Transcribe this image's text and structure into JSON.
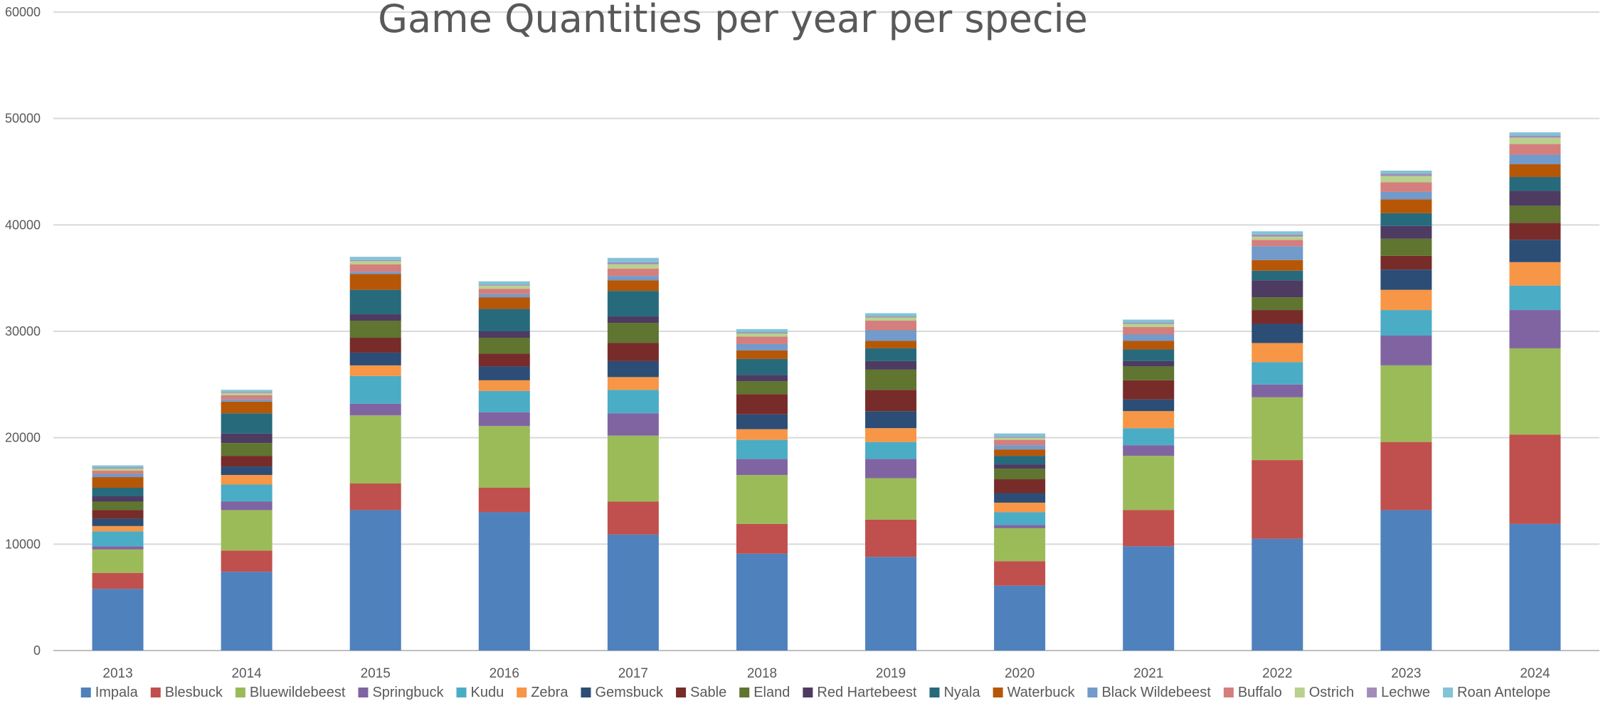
{
  "chart_data": {
    "type": "bar",
    "stacked": true,
    "title": "Game Quantities per year per specie",
    "xlabel": "",
    "ylabel": "",
    "ylim": [
      0,
      60000
    ],
    "yticks": [
      0,
      10000,
      20000,
      30000,
      40000,
      50000,
      60000
    ],
    "ytick_labels": [
      "0",
      "10000",
      "20000",
      "30000",
      "40000",
      "50000",
      "60000"
    ],
    "grid": true,
    "legend_position": "bottom",
    "categories": [
      "2013",
      "2014",
      "2015",
      "2016",
      "2017",
      "2018",
      "2019",
      "2020",
      "2021",
      "2022",
      "2023",
      "2024"
    ],
    "series": [
      {
        "name": "Impala",
        "color": "#4F81BD",
        "values": [
          5800,
          7400,
          13200,
          13000,
          10900,
          9100,
          8800,
          6100,
          9800,
          10500,
          13200,
          11900
        ]
      },
      {
        "name": "Blesbuck",
        "color": "#C0504D",
        "values": [
          1500,
          2000,
          2500,
          2300,
          3100,
          2800,
          3500,
          2300,
          3400,
          7400,
          6400,
          8400
        ]
      },
      {
        "name": "Bluewildebeest",
        "color": "#9BBB59",
        "values": [
          2200,
          3800,
          6400,
          5800,
          6200,
          4600,
          3900,
          3100,
          5100,
          5900,
          7200,
          8100
        ]
      },
      {
        "name": "Springbuck",
        "color": "#8064A2",
        "values": [
          300,
          800,
          1100,
          1300,
          2100,
          1500,
          1800,
          300,
          1000,
          1200,
          2800,
          3600
        ]
      },
      {
        "name": "Kudu",
        "color": "#4BACC6",
        "values": [
          1400,
          1600,
          2600,
          2000,
          2200,
          1800,
          1600,
          1200,
          1600,
          2100,
          2400,
          2300
        ]
      },
      {
        "name": "Zebra",
        "color": "#F79646",
        "values": [
          500,
          900,
          1000,
          1000,
          1200,
          1000,
          1300,
          900,
          1600,
          1800,
          1900,
          2200
        ]
      },
      {
        "name": "Gemsbuck",
        "color": "#2C4D75",
        "values": [
          700,
          800,
          1200,
          1300,
          1500,
          1400,
          1600,
          900,
          1100,
          1800,
          1900,
          2100
        ]
      },
      {
        "name": "Sable",
        "color": "#772C2A",
        "values": [
          800,
          1000,
          1400,
          1200,
          1700,
          1900,
          2000,
          1300,
          1800,
          1300,
          1300,
          1600
        ]
      },
      {
        "name": "Eland",
        "color": "#5F7530",
        "values": [
          800,
          1200,
          1600,
          1500,
          1900,
          1200,
          1900,
          1000,
          1300,
          1200,
          1600,
          1600
        ]
      },
      {
        "name": "Red Hartebeest",
        "color": "#4D3B62",
        "values": [
          500,
          900,
          600,
          600,
          600,
          600,
          800,
          400,
          500,
          1600,
          1200,
          1400
        ]
      },
      {
        "name": "Nyala",
        "color": "#276A7C",
        "values": [
          800,
          1900,
          2300,
          2100,
          2400,
          1500,
          1200,
          800,
          1100,
          900,
          1200,
          1300
        ]
      },
      {
        "name": "Waterbuck",
        "color": "#B65708",
        "values": [
          1000,
          1100,
          1500,
          1100,
          1000,
          800,
          700,
          600,
          800,
          1000,
          1300,
          1200
        ]
      },
      {
        "name": "Black Wildebeest",
        "color": "#729ACA",
        "values": [
          300,
          200,
          200,
          300,
          400,
          600,
          1000,
          400,
          600,
          1300,
          700,
          900
        ]
      },
      {
        "name": "Buffalo",
        "color": "#D47F7D",
        "values": [
          300,
          400,
          700,
          500,
          700,
          700,
          900,
          500,
          700,
          600,
          900,
          1000
        ]
      },
      {
        "name": "Ostrich",
        "color": "#B9D18E",
        "values": [
          200,
          200,
          300,
          300,
          400,
          300,
          300,
          200,
          300,
          300,
          600,
          600
        ]
      },
      {
        "name": "Lechwe",
        "color": "#A18DBA",
        "values": [
          100,
          100,
          100,
          100,
          200,
          100,
          100,
          100,
          100,
          200,
          200,
          200
        ]
      },
      {
        "name": "Roan Antelope",
        "color": "#82C3D6",
        "values": [
          200,
          200,
          300,
          300,
          400,
          300,
          300,
          300,
          300,
          300,
          300,
          300
        ]
      }
    ]
  }
}
